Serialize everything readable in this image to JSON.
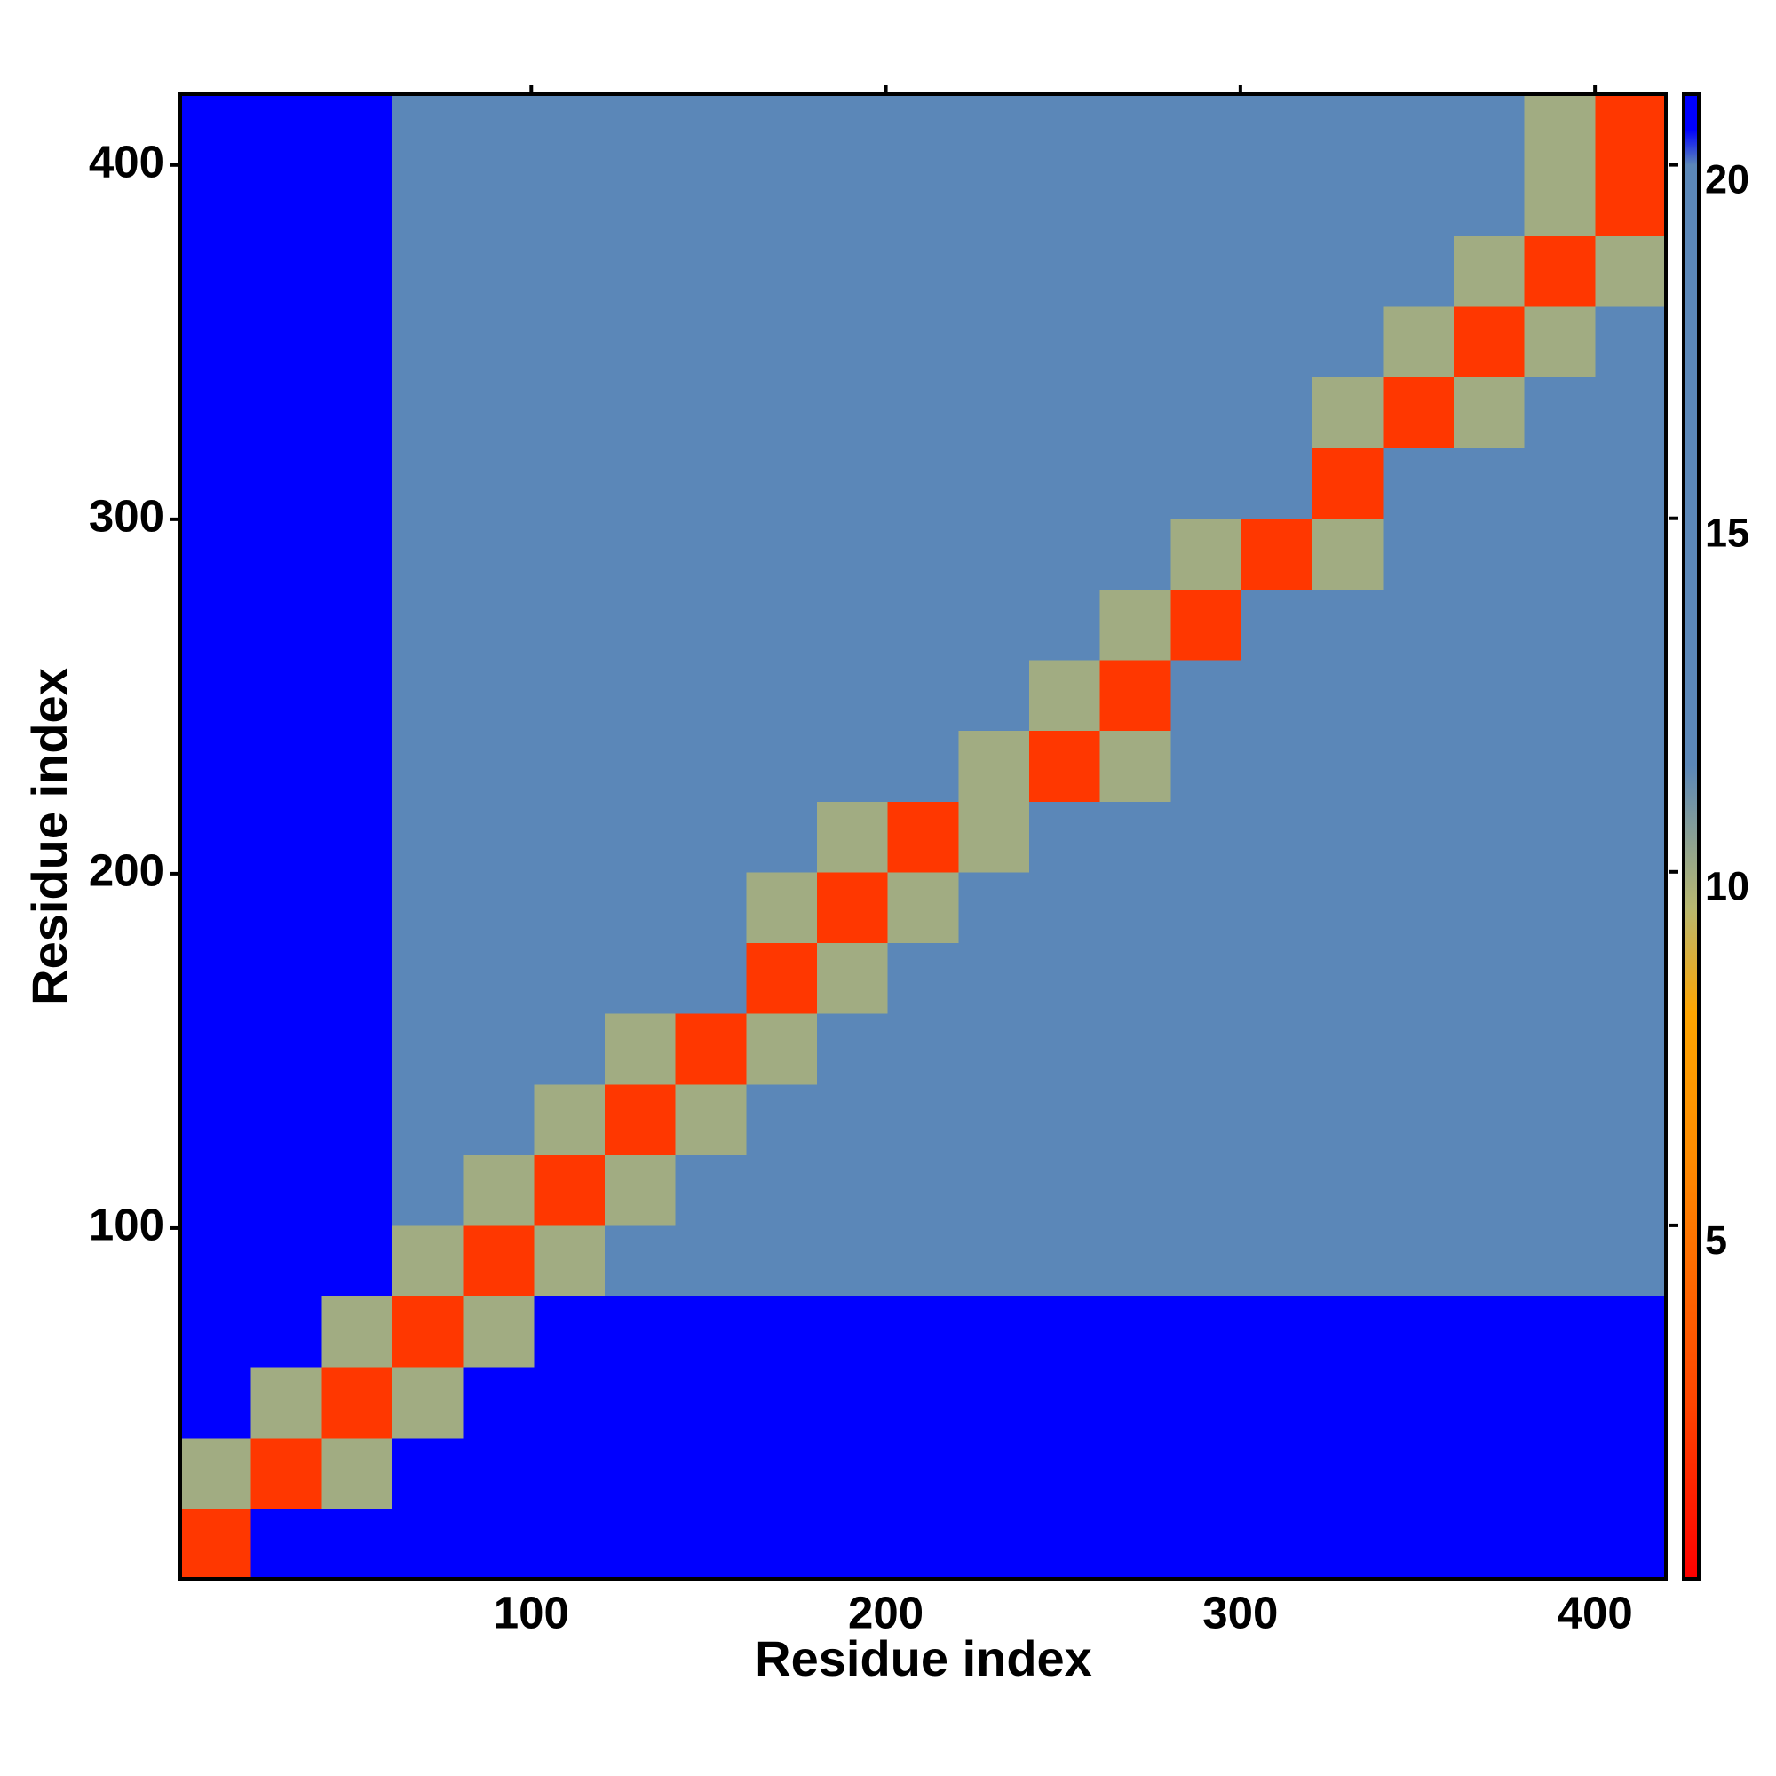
{
  "chart_data": {
    "type": "heatmap",
    "xlabel": "Residue index",
    "ylabel": "Residue index",
    "xlim": [
      1,
      420
    ],
    "ylim": [
      1,
      420
    ],
    "xticks": [
      100,
      200,
      300,
      400
    ],
    "yticks": [
      100,
      200,
      300,
      400
    ],
    "clim": [
      0,
      21
    ],
    "cticks": [
      5,
      10,
      15,
      20
    ],
    "colorscale": [
      [
        0,
        "#ff0000"
      ],
      [
        2.5,
        "#ff4500"
      ],
      [
        6,
        "#ff8c00"
      ],
      [
        8,
        "#ffa500"
      ],
      [
        9.5,
        "#b8b870"
      ],
      [
        11.5,
        "#5b87b8"
      ],
      [
        20,
        "#5b87b8"
      ],
      [
        20.5,
        "#0000ff"
      ],
      [
        21,
        "#0000ff"
      ]
    ],
    "z": [
      [
        2,
        21,
        21,
        21,
        21,
        21,
        21,
        21,
        21,
        21,
        21,
        21,
        21,
        21,
        21,
        21,
        21,
        21,
        21,
        21,
        21
      ],
      [
        10,
        2,
        10,
        21,
        21,
        21,
        21,
        21,
        21,
        21,
        21,
        21,
        21,
        21,
        21,
        21,
        21,
        21,
        21,
        21,
        21
      ],
      [
        21,
        10,
        2,
        10,
        21,
        21,
        21,
        21,
        21,
        21,
        21,
        21,
        21,
        21,
        21,
        21,
        21,
        21,
        21,
        21,
        21
      ],
      [
        21,
        21,
        10,
        2,
        10,
        21,
        21,
        21,
        21,
        21,
        21,
        21,
        21,
        21,
        21,
        21,
        21,
        21,
        21,
        21,
        21
      ],
      [
        21,
        21,
        21,
        10,
        2,
        10,
        16,
        16,
        18,
        18,
        16,
        18,
        19,
        18,
        17,
        18,
        19,
        19,
        19,
        19,
        19
      ],
      [
        21,
        21,
        21,
        17,
        10,
        2,
        10,
        18,
        16,
        16,
        16,
        16,
        16,
        17,
        17,
        16,
        17,
        17,
        16,
        16,
        16
      ],
      [
        21,
        21,
        21,
        16,
        12,
        10,
        2,
        10,
        16,
        19,
        19,
        16,
        16,
        12,
        14,
        16,
        16,
        16,
        16,
        12,
        14
      ],
      [
        21,
        21,
        21,
        17,
        12,
        16,
        10,
        2,
        10,
        18,
        14,
        17,
        17,
        16,
        16,
        19,
        17,
        16,
        16,
        16,
        16
      ],
      [
        21,
        21,
        21,
        17,
        16,
        12,
        14,
        12,
        2,
        10,
        14,
        16,
        14,
        14,
        16,
        16,
        17,
        16,
        16,
        17,
        16
      ],
      [
        21,
        21,
        21,
        16,
        13,
        14,
        18,
        18,
        10,
        2,
        10,
        17,
        17,
        16,
        16,
        16,
        16,
        17,
        19,
        19,
        17
      ],
      [
        21,
        21,
        21,
        16,
        13,
        16,
        16,
        12,
        14,
        10,
        2,
        10,
        16,
        19,
        16,
        16,
        18,
        17,
        16,
        16,
        17
      ],
      [
        21,
        21,
        21,
        16,
        16,
        16,
        16,
        12,
        16,
        16,
        14,
        10,
        2,
        10,
        16,
        16,
        16,
        16,
        16,
        16,
        16
      ],
      [
        21,
        21,
        21,
        20,
        17,
        18,
        16,
        18,
        16,
        16,
        19,
        16,
        10,
        2,
        12,
        19,
        12,
        16,
        16,
        16,
        18
      ],
      [
        21,
        21,
        21,
        19,
        16,
        18,
        12,
        16,
        16,
        16,
        14,
        12,
        16,
        10,
        2,
        12,
        16,
        16,
        16,
        16,
        16
      ],
      [
        21,
        21,
        21,
        17,
        17,
        16,
        12,
        14,
        16,
        18,
        14,
        17,
        18,
        14,
        10,
        2,
        10,
        19,
        18,
        19,
        16
      ],
      [
        21,
        21,
        21,
        17,
        16,
        18,
        16,
        18,
        16,
        16,
        18,
        16,
        16,
        18,
        14,
        12,
        2,
        12,
        14,
        16,
        14
      ],
      [
        21,
        21,
        21,
        19,
        18,
        16,
        16,
        14,
        16,
        16,
        14,
        16,
        12,
        16,
        16,
        14,
        10,
        2,
        10,
        14,
        16
      ],
      [
        21,
        21,
        21,
        19,
        18,
        16,
        16,
        16,
        16,
        18,
        18,
        14,
        12,
        18,
        16,
        14,
        12,
        10,
        2,
        10,
        18
      ],
      [
        21,
        21,
        21,
        20,
        19,
        17,
        16,
        19,
        16,
        19,
        18,
        16,
        16,
        19,
        14,
        12,
        14,
        14,
        10,
        2,
        10
      ],
      [
        21,
        21,
        21,
        20,
        19,
        18,
        16,
        16,
        16,
        20,
        16,
        18,
        16,
        14,
        12,
        16,
        16,
        19,
        16,
        10,
        2
      ],
      [
        21,
        21,
        21,
        20,
        19,
        18,
        14,
        16,
        19,
        19,
        17,
        16,
        16,
        16,
        12,
        14,
        18,
        17,
        14,
        10,
        2
      ]
    ]
  }
}
